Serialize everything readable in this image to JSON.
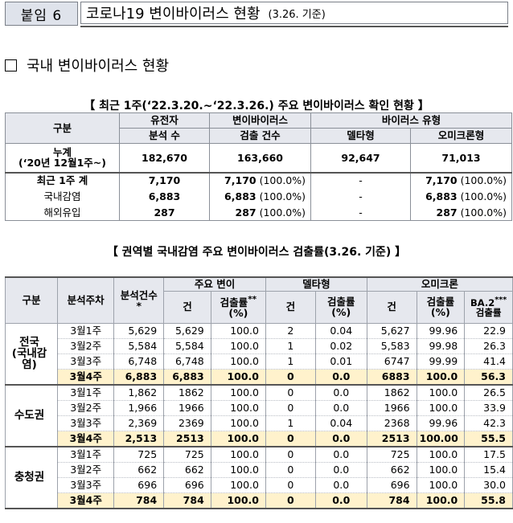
{
  "header": {
    "tag": "붙임 6",
    "title": "코로나19 변이바이러스 현황",
    "basis": "(3.26. 기준)"
  },
  "section_title": "국내 변이바이러스 현황",
  "table1": {
    "caption": "【 최근 1주(‘22.3.20.~‘22.3.26.) 주요 변이바이러스 확인 현황 】",
    "headers": {
      "category": "구분",
      "analyzed_1": "유전자",
      "analyzed_2": "분석 수",
      "detected_1": "변이바이러스",
      "detected_2": "검출 건수",
      "virus_type": "바이러스 유형",
      "delta": "델타형",
      "omicron": "오미크론형"
    },
    "rows": [
      {
        "label_1": "누계",
        "label_2": "(‘20년 12월1주~)",
        "analyzed": "182,670",
        "detected": "163,660",
        "detected_pct": "",
        "delta": "92,647",
        "omicron": "71,013",
        "omicron_pct": ""
      },
      {
        "label_1": "최근 1주 계",
        "analyzed": "7,170",
        "detected": "7,170",
        "detected_pct": "(100.0%)",
        "delta": "-",
        "omicron": "7,170",
        "omicron_pct": "(100.0%)"
      },
      {
        "label_1": "국내감염",
        "analyzed": "6,883",
        "detected": "6,883",
        "detected_pct": "(100.0%)",
        "delta": "-",
        "omicron": "6,883",
        "omicron_pct": "(100.0%)"
      },
      {
        "label_1": "해외유입",
        "analyzed": "287",
        "detected": "287",
        "detected_pct": "(100.0%)",
        "delta": "-",
        "omicron": "287",
        "omicron_pct": "(100.0%)"
      }
    ]
  },
  "table2": {
    "caption": "【 권역별 국내감염 주요 변이바이러스 검출률(3.26. 기준) 】",
    "headers": {
      "category": "구분",
      "week": "분석주차",
      "analyzed": "분석건수",
      "analyzed_mark": "*",
      "major": "주요 변이",
      "delta": "델타형",
      "omicron": "오미크론",
      "count": "건",
      "rate": "검출률",
      "rate_mark": "**",
      "rate_unit": "(%)",
      "ba2": "BA.2",
      "ba2_mark": "***",
      "ba2_tail": "검출률"
    },
    "regions": [
      {
        "name": "전국\n(국내감염)",
        "rows": [
          {
            "week": "3월1주",
            "analyzed": "5,629",
            "major_n": "5,629",
            "major_r": "100.0",
            "delta_n": "2",
            "delta_r": "0.04",
            "omi_n": "5,627",
            "omi_r": "99.96",
            "ba2": "22.9"
          },
          {
            "week": "3월2주",
            "analyzed": "5,584",
            "major_n": "5,584",
            "major_r": "100.0",
            "delta_n": "1",
            "delta_r": "0.02",
            "omi_n": "5,583",
            "omi_r": "99.98",
            "ba2": "26.3"
          },
          {
            "week": "3월3주",
            "analyzed": "6,748",
            "major_n": "6,748",
            "major_r": "100.0",
            "delta_n": "1",
            "delta_r": "0.01",
            "omi_n": "6747",
            "omi_r": "99.99",
            "ba2": "41.4"
          },
          {
            "week": "3월4주",
            "analyzed": "6,883",
            "major_n": "6,883",
            "major_r": "100.0",
            "delta_n": "0",
            "delta_r": "0.0",
            "omi_n": "6883",
            "omi_r": "100.0",
            "ba2": "56.3"
          }
        ]
      },
      {
        "name": "수도권",
        "rows": [
          {
            "week": "3월1주",
            "analyzed": "1,862",
            "major_n": "1862",
            "major_r": "100.0",
            "delta_n": "0",
            "delta_r": "0.0",
            "omi_n": "1862",
            "omi_r": "100.0",
            "ba2": "26.5"
          },
          {
            "week": "3월2주",
            "analyzed": "1,966",
            "major_n": "1966",
            "major_r": "100.0",
            "delta_n": "0",
            "delta_r": "0.0",
            "omi_n": "1966",
            "omi_r": "100.0",
            "ba2": "33.9"
          },
          {
            "week": "3월3주",
            "analyzed": "2,369",
            "major_n": "2369",
            "major_r": "100.0",
            "delta_n": "1",
            "delta_r": "0.04",
            "omi_n": "2368",
            "omi_r": "99.96",
            "ba2": "42.3"
          },
          {
            "week": "3월4주",
            "analyzed": "2,513",
            "major_n": "2513",
            "major_r": "100.0",
            "delta_n": "0",
            "delta_r": "0.0",
            "omi_n": "2513",
            "omi_r": "100.00",
            "ba2": "55.5"
          }
        ]
      },
      {
        "name": "충청권",
        "rows": [
          {
            "week": "3월1주",
            "analyzed": "725",
            "major_n": "725",
            "major_r": "100.0",
            "delta_n": "0",
            "delta_r": "0.0",
            "omi_n": "725",
            "omi_r": "100.0",
            "ba2": "17.5"
          },
          {
            "week": "3월2주",
            "analyzed": "662",
            "major_n": "662",
            "major_r": "100.0",
            "delta_n": "0",
            "delta_r": "0.0",
            "omi_n": "662",
            "omi_r": "100.0",
            "ba2": "15.4"
          },
          {
            "week": "3월3주",
            "analyzed": "696",
            "major_n": "696",
            "major_r": "100.0",
            "delta_n": "0",
            "delta_r": "0.0",
            "omi_n": "696",
            "omi_r": "100.0",
            "ba2": "30.0"
          },
          {
            "week": "3월4주",
            "analyzed": "784",
            "major_n": "784",
            "major_r": "100.0",
            "delta_n": "0",
            "delta_r": "0.0",
            "omi_n": "784",
            "omi_r": "100.0",
            "ba2": "55.8"
          }
        ]
      }
    ]
  }
}
